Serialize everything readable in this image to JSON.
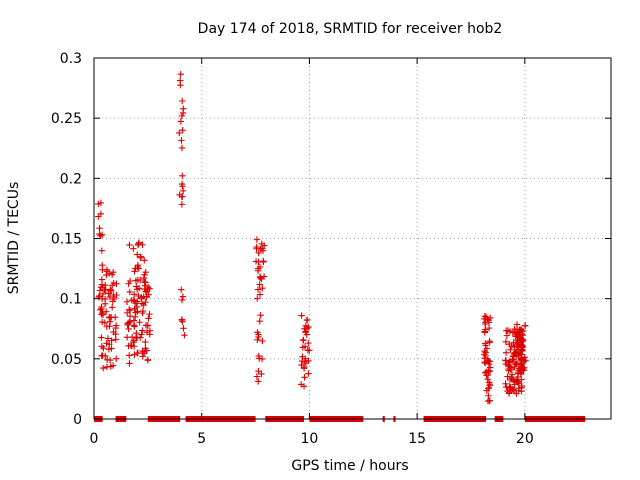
{
  "chart_data": {
    "type": "scatter",
    "title": "Day 174 of 2018, SRMTID for receiver hob2",
    "xlabel": "GPS time / hours",
    "ylabel": "SRMTID / TECUs",
    "xlim": [
      0,
      24
    ],
    "ylim": [
      0,
      0.3
    ],
    "x_ticks": [
      0,
      5,
      10,
      15,
      20
    ],
    "x_tick_labels": [
      "0",
      "5",
      "10",
      "15",
      "20"
    ],
    "y_ticks": [
      0,
      0.05,
      0.1,
      0.15,
      0.2,
      0.25,
      0.3
    ],
    "y_tick_labels": [
      "0",
      "0.05",
      "0.1",
      "0.15",
      "0.2",
      "0.25",
      "0.3"
    ],
    "grid": true,
    "color": "#dd0000",
    "marker": "plus",
    "clusters": [
      {
        "x_range": [
          0.2,
          0.45
        ],
        "y_range": [
          0.09,
          0.19
        ],
        "n": 18
      },
      {
        "x_range": [
          0.3,
          0.9
        ],
        "y_range": [
          0.042,
          0.125
        ],
        "n": 55
      },
      {
        "x_range": [
          0.9,
          1.05
        ],
        "y_range": [
          0.05,
          0.12
        ],
        "n": 12
      },
      {
        "x_range": [
          1.5,
          2.5
        ],
        "y_range": [
          0.045,
          0.148
        ],
        "n": 90
      },
      {
        "x_range": [
          2.3,
          2.6
        ],
        "y_range": [
          0.07,
          0.115
        ],
        "n": 20
      },
      {
        "x_range": [
          3.95,
          4.15
        ],
        "y_range": [
          0.178,
          0.29
        ],
        "n": 20
      },
      {
        "x_range": [
          4.05,
          4.2
        ],
        "y_range": [
          0.063,
          0.125
        ],
        "n": 8
      },
      {
        "x_range": [
          7.5,
          7.9
        ],
        "y_range": [
          0.1,
          0.15
        ],
        "n": 25
      },
      {
        "x_range": [
          7.55,
          7.85
        ],
        "y_range": [
          0.027,
          0.095
        ],
        "n": 14
      },
      {
        "x_range": [
          9.6,
          10.0
        ],
        "y_range": [
          0.027,
          0.086
        ],
        "n": 30
      },
      {
        "x_range": [
          18.1,
          18.4
        ],
        "y_range": [
          0.012,
          0.088
        ],
        "n": 50
      },
      {
        "x_range": [
          19.1,
          19.9
        ],
        "y_range": [
          0.02,
          0.075
        ],
        "n": 110
      },
      {
        "x_range": [
          19.6,
          20.05
        ],
        "y_range": [
          0.04,
          0.079
        ],
        "n": 40
      }
    ],
    "zero_segments": [
      [
        0.0,
        0.4
      ],
      [
        1.0,
        1.5
      ],
      [
        2.5,
        4.0
      ],
      [
        4.25,
        7.5
      ],
      [
        7.95,
        9.75
      ],
      [
        10.0,
        12.5
      ],
      [
        13.4,
        13.5
      ],
      [
        13.9,
        14.0
      ],
      [
        15.3,
        18.2
      ],
      [
        18.6,
        19.0
      ],
      [
        20.0,
        22.8
      ]
    ]
  }
}
